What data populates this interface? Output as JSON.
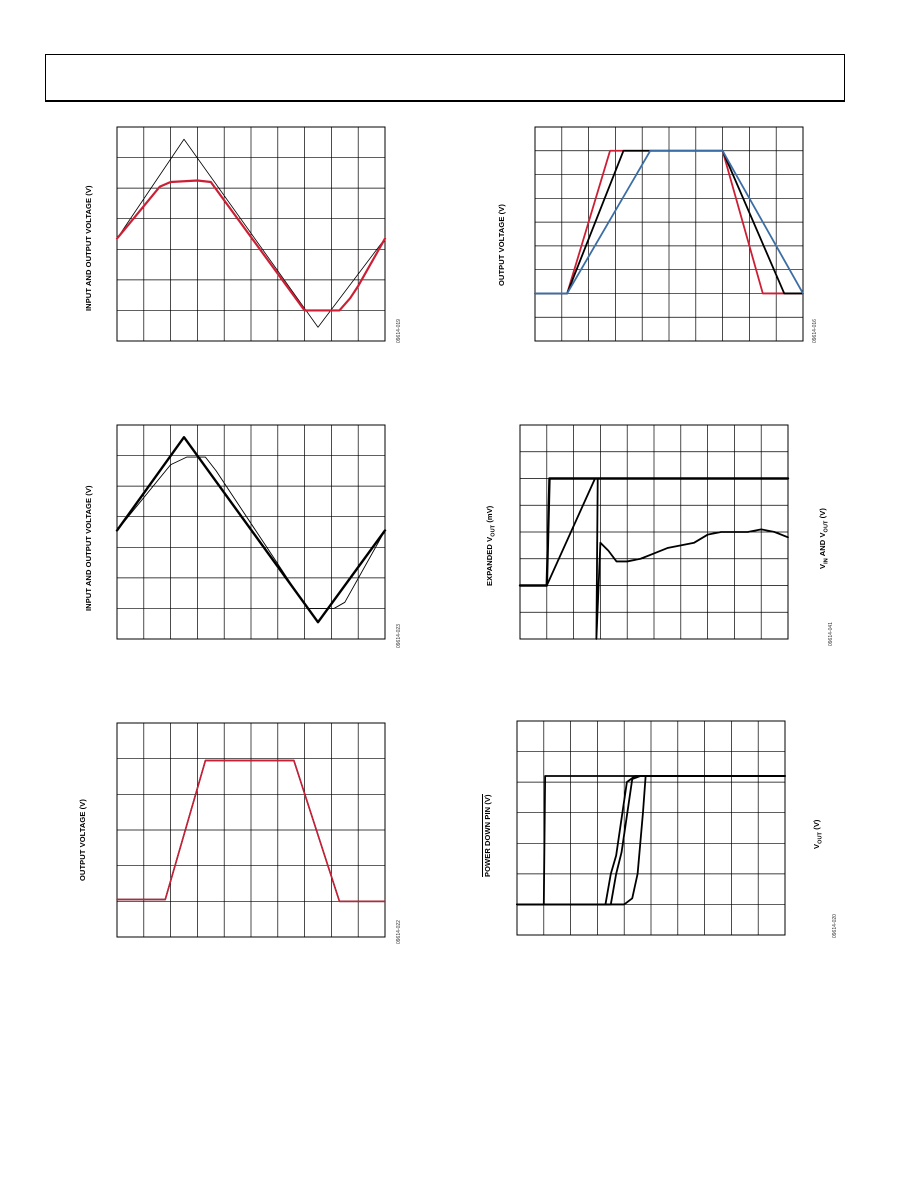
{
  "chart_data": [
    {
      "type": "line",
      "ylabel": "INPUT AND OUTPUT VOLTAGE (V)",
      "code": "09614-019",
      "grid": true,
      "xlim": [
        0,
        10
      ],
      "ylim": [
        0,
        7
      ],
      "series": [
        {
          "color": "#000000",
          "stroke_width": 0.8,
          "x": [
            0,
            2.5,
            7.5,
            10
          ],
          "y": [
            3.35,
            6.6,
            0.45,
            3.35
          ]
        },
        {
          "color": "#cc1f35",
          "stroke_width": 2.2,
          "x": [
            0,
            1.6,
            2.0,
            3.0,
            3.5,
            7.0,
            8.3,
            8.7,
            9.0,
            10
          ],
          "y": [
            3.35,
            5.05,
            5.2,
            5.25,
            5.2,
            1.0,
            1.0,
            1.4,
            1.8,
            3.35
          ]
        }
      ]
    },
    {
      "type": "line",
      "ylabel": "OUTPUT VOLTAGE (V)",
      "code": "09614-016",
      "grid": true,
      "xlim": [
        0,
        10
      ],
      "ylim": [
        0,
        9
      ],
      "series": [
        {
          "color": "#cc1f35",
          "stroke_width": 1.8,
          "x": [
            0,
            1.2,
            2.8,
            7.0,
            8.5,
            10
          ],
          "y": [
            2,
            2,
            8,
            8,
            2,
            2
          ]
        },
        {
          "color": "#000000",
          "stroke_width": 1.8,
          "x": [
            0,
            1.2,
            3.3,
            7.0,
            9.3,
            10
          ],
          "y": [
            2,
            2,
            8,
            8,
            2,
            2
          ]
        },
        {
          "color": "#3c6ea6",
          "stroke_width": 1.8,
          "x": [
            0,
            1.2,
            4.3,
            7.0,
            10
          ],
          "y": [
            2,
            2,
            8,
            8,
            2
          ]
        }
      ]
    },
    {
      "type": "line",
      "ylabel": "INPUT AND OUTPUT VOLTAGE (V)",
      "code": "09614-023",
      "grid": true,
      "xlim": [
        0,
        10
      ],
      "ylim": [
        0,
        7
      ],
      "series": [
        {
          "color": "#000000",
          "stroke_width": 0.9,
          "x": [
            0,
            2.0,
            2.6,
            3.3,
            3.7,
            7.1,
            7.5,
            8.1,
            8.5,
            10
          ],
          "y": [
            3.55,
            5.7,
            5.95,
            5.95,
            5.5,
            1.0,
            1.0,
            1.0,
            1.2,
            3.55
          ]
        },
        {
          "color": "#000000",
          "stroke_width": 2.4,
          "x": [
            0,
            2.5,
            7.5,
            10
          ],
          "y": [
            3.55,
            6.6,
            0.55,
            3.55
          ]
        }
      ]
    },
    {
      "type": "line",
      "ylabel": "EXPANDED V_OUT (mV)",
      "ylabel_right": "V_IN AND V_OUT (V)",
      "code": "09614-041",
      "grid": true,
      "xlim": [
        0,
        10
      ],
      "ylim": [
        0,
        8
      ],
      "series": [
        {
          "color": "#000000",
          "stroke_width": 2.4,
          "x": [
            0,
            1.0,
            1.1,
            10
          ],
          "y": [
            2.0,
            2.0,
            6.0,
            6.0
          ]
        },
        {
          "color": "#000000",
          "stroke_width": 1.8,
          "x": [
            1.0,
            2.8,
            2.9,
            2.85,
            3.0,
            3.3,
            3.6,
            4.0,
            4.5,
            5.0,
            5.5,
            6.0,
            6.5,
            7.0,
            7.5,
            8.0,
            8.5,
            9.0,
            9.5,
            10
          ],
          "y": [
            2.0,
            6.0,
            6.0,
            0.0,
            3.6,
            3.3,
            2.9,
            2.9,
            3.0,
            3.2,
            3.4,
            3.5,
            3.6,
            3.9,
            4.0,
            4.0,
            4.0,
            4.1,
            4.0,
            3.8
          ]
        }
      ]
    },
    {
      "type": "line",
      "ylabel": "OUTPUT VOLTAGE (V)",
      "code": "09614-022",
      "grid": true,
      "xlim": [
        0,
        10
      ],
      "ylim": [
        0,
        6
      ],
      "series": [
        {
          "color": "#000000",
          "stroke_width": 1.5,
          "x": [
            0,
            1.8,
            3.3,
            6.6,
            8.3,
            10
          ],
          "y": [
            1.05,
            1.05,
            4.95,
            4.95,
            1.0,
            1.0
          ]
        },
        {
          "color": "#cc1f35",
          "stroke_width": 1.5,
          "x": [
            0,
            1.8,
            3.3,
            6.6,
            8.3,
            10
          ],
          "y": [
            1.05,
            1.05,
            4.95,
            4.95,
            1.0,
            1.0
          ]
        }
      ]
    },
    {
      "type": "line",
      "ylabel": "POWER DOWN PIN (V)",
      "ylabel_right": "V_OUT (V)",
      "code": "09614-020",
      "grid": true,
      "xlim": [
        0,
        10
      ],
      "ylim": [
        0,
        7
      ],
      "series": [
        {
          "color": "#000000",
          "stroke_width": 1.8,
          "x": [
            0,
            1.0,
            1.05,
            10
          ],
          "y": [
            1.0,
            1.0,
            5.2,
            5.2
          ]
        },
        {
          "color": "#000000",
          "stroke_width": 1.8,
          "x": [
            0,
            3.3,
            3.5,
            3.7,
            4.1,
            4.4,
            10
          ],
          "y": [
            1.0,
            1.0,
            2.0,
            2.6,
            5.0,
            5.2,
            5.2
          ]
        },
        {
          "color": "#000000",
          "stroke_width": 1.8,
          "x": [
            0,
            3.5,
            3.7,
            3.9,
            4.3,
            4.6,
            10
          ],
          "y": [
            1.0,
            1.0,
            2.0,
            2.7,
            5.1,
            5.2,
            5.2
          ]
        },
        {
          "color": "#000000",
          "stroke_width": 1.8,
          "x": [
            0,
            4.0,
            4.3,
            4.5,
            4.7,
            4.8,
            10
          ],
          "y": [
            1.0,
            1.0,
            1.2,
            2.0,
            4.0,
            5.2,
            5.2
          ]
        }
      ]
    }
  ]
}
